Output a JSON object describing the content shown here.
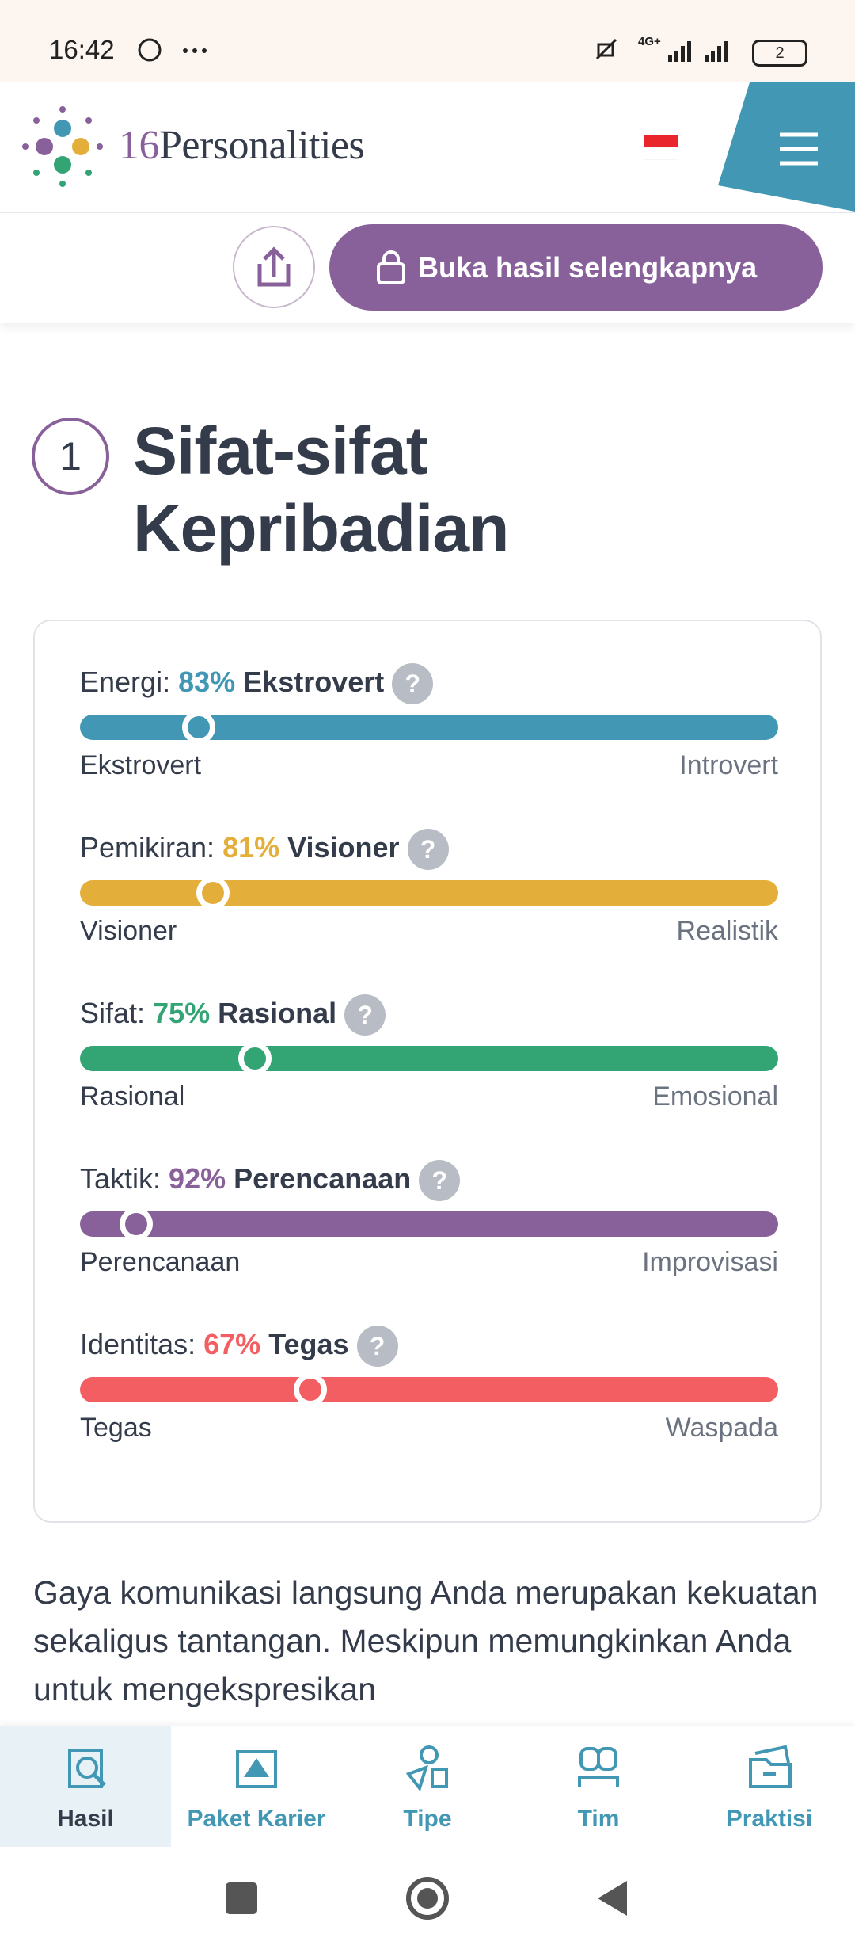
{
  "status_bar": {
    "time": "16:42",
    "network": "4G+",
    "battery": "2"
  },
  "header": {
    "brand_number": "16",
    "brand_name": "Personalities"
  },
  "actions": {
    "unlock": "Buka hasil selengkapnya"
  },
  "section": {
    "number": 1,
    "title": "Sifat-sifat Kepribadian"
  },
  "traits": [
    {
      "label": "Energi:",
      "percent": 83,
      "percent_label": "83%",
      "trait": "Ekstrovert",
      "left": "Ekstrovert",
      "right": "Introvert",
      "color": "#4298b4"
    },
    {
      "label": "Pemikiran:",
      "percent": 81,
      "percent_label": "81%",
      "trait": "Visioner",
      "left": "Visioner",
      "right": "Realistik",
      "color": "#e4ae3a"
    },
    {
      "label": "Sifat:",
      "percent": 75,
      "percent_label": "75%",
      "trait": "Rasional",
      "left": "Rasional",
      "right": "Emosional",
      "color": "#33a474"
    },
    {
      "label": "Taktik:",
      "percent": 92,
      "percent_label": "92%",
      "trait": "Perencanaan",
      "left": "Perencanaan",
      "right": "Improvisasi",
      "color": "#88619a"
    },
    {
      "label": "Identitas:",
      "percent": 67,
      "percent_label": "67%",
      "trait": "Tegas",
      "left": "Tegas",
      "right": "Waspada",
      "color": "#f25e62"
    }
  ],
  "help_icon": "?",
  "paragraph": "Gaya komunikasi langsung Anda merupakan kekuatan sekaligus tantangan. Meskipun memungkinkan Anda untuk mengekspresikan",
  "nav": [
    "Hasil",
    "Paket Karier",
    "Tipe",
    "Tim",
    "Praktisi"
  ]
}
